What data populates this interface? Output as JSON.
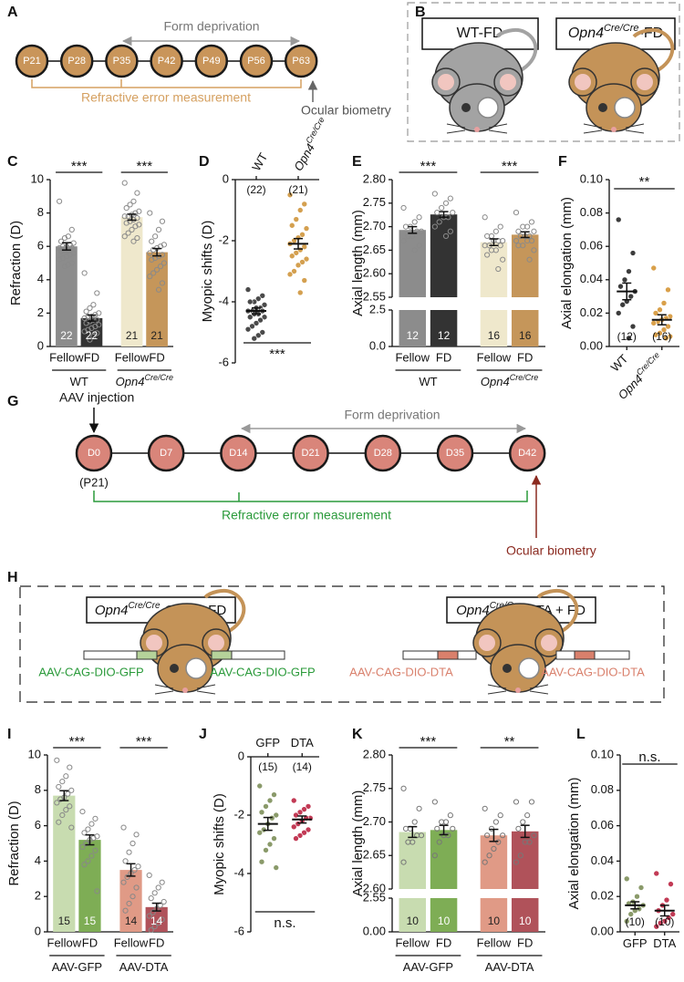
{
  "panel_letters": [
    "A",
    "B",
    "C",
    "D",
    "E",
    "F",
    "G",
    "H",
    "I",
    "J",
    "K",
    "L"
  ],
  "timeline_a": {
    "nodes": [
      "P21",
      "P28",
      "P35",
      "P42",
      "P49",
      "P56",
      "P63"
    ],
    "arrow_label": "Form deprivation",
    "bracket_label": "Refractive error measurement",
    "end_label": "Ocular biometry"
  },
  "mice_b": {
    "labels": [
      {
        "text": "WT-FD"
      },
      {
        "text": "Opn4",
        "sup": "Cre/Cre",
        "suffix": "-FD"
      }
    ]
  },
  "timeline_g": {
    "start_label": "AAV injection",
    "start_sub": "(P21)",
    "nodes": [
      "D0",
      "D7",
      "D14",
      "D21",
      "D28",
      "D35",
      "D42"
    ],
    "arrow_label": "Form deprivation",
    "bracket_label": "Refractive error measurement",
    "end_label": "Ocular biometry"
  },
  "mice_h": {
    "labels": [
      {
        "text": "Opn4",
        "sup": "Cre/Cre",
        "suffix": "-GFP + FD"
      },
      {
        "text": "Opn4",
        "sup": "Cre/Cre",
        "suffix": "-DTA + FD"
      }
    ],
    "syringes": [
      "AAV-CAG-DIO-GFP",
      "AAV-CAG-DIO-GFP",
      "AAV-CAG-DIO-DTA",
      "AAV-CAG-DIO-DTA"
    ]
  },
  "chart_data": [
    {
      "type": "bar",
      "ylabel": "Refraction (D)",
      "ylim": [
        0,
        10
      ],
      "yticks": [
        0,
        2,
        4,
        6,
        8,
        10
      ],
      "categories": [
        "Fellow",
        "FD",
        "Fellow",
        "FD"
      ],
      "values": [
        6.0,
        1.7,
        7.75,
        5.65
      ],
      "errors": [
        0.22,
        0.18,
        0.18,
        0.22
      ],
      "colors": [
        "#8c8c8c",
        "#333333",
        "#efe8cc",
        "#c5965a"
      ],
      "point_color": "#8a8a8a",
      "points": [
        [
          8.7,
          7.0,
          6.6,
          6.5,
          6.3,
          6.2,
          6.1,
          6.0,
          6.0,
          5.9,
          5.9,
          5.8,
          5.8,
          5.7,
          5.6,
          5.5,
          5.4,
          5.3,
          5.2,
          5.0,
          4.9,
          4.8
        ],
        [
          4.4,
          3.2,
          2.5,
          2.3,
          2.1,
          2.0,
          1.9,
          1.8,
          1.8,
          1.7,
          1.6,
          1.6,
          1.5,
          1.4,
          1.3,
          1.2,
          1.1,
          1.0,
          0.9,
          0.8,
          0.6,
          0.4
        ],
        [
          9.8,
          9.2,
          8.7,
          8.5,
          8.3,
          8.1,
          8.0,
          7.9,
          7.8,
          7.8,
          7.7,
          7.6,
          7.5,
          7.4,
          7.3,
          7.2,
          7.0,
          6.8,
          6.6,
          6.5,
          6.3
        ],
        [
          8.0,
          7.5,
          7.0,
          6.6,
          6.3,
          6.1,
          6.0,
          5.9,
          5.8,
          5.6,
          5.5,
          5.4,
          5.3,
          5.2,
          5.0,
          4.8,
          4.6,
          4.4,
          4.2,
          3.8,
          3.4
        ]
      ],
      "n_labels": [
        22,
        22,
        21,
        21
      ],
      "groups": [
        {
          "text": "WT"
        },
        {
          "text": "Opn4",
          "sup": "Cre/Cre"
        }
      ],
      "significance": [
        "***",
        "***"
      ]
    },
    {
      "type": "strip",
      "ylabel": "Myopic shifts (D)",
      "ylim": [
        -6,
        0
      ],
      "yticks": [
        0,
        -2,
        -4,
        -6
      ],
      "categories": [
        {
          "text": "WT"
        },
        {
          "text": "Opn4",
          "sup": "Cre/Cre"
        }
      ],
      "category_position": "top",
      "colors": [
        "#4a4a4a",
        "#d4a050"
      ],
      "points": [
        [
          -3.6,
          -3.8,
          -3.9,
          -4.0,
          -4.0,
          -4.1,
          -4.2,
          -4.2,
          -4.3,
          -4.3,
          -4.3,
          -4.4,
          -4.4,
          -4.5,
          -4.5,
          -4.6,
          -4.7,
          -4.8,
          -4.9,
          -5.0,
          -5.1,
          -5.2
        ],
        [
          -0.5,
          -0.8,
          -1.0,
          -1.3,
          -1.5,
          -1.6,
          -1.8,
          -1.9,
          -2.0,
          -2.1,
          -2.2,
          -2.3,
          -2.4,
          -2.5,
          -2.6,
          -2.7,
          -2.8,
          -3.0,
          -3.1,
          -3.3,
          -3.7
        ]
      ],
      "means": [
        -4.3,
        -2.1
      ],
      "errors": [
        0.1,
        0.17
      ],
      "n_labels": [
        "(22)",
        "(21)"
      ],
      "significance": [
        "***"
      ],
      "significance_position": "bottom"
    },
    {
      "type": "bar",
      "ylabel": "Axial length (mm)",
      "ylim_lower": [
        0,
        2.5
      ],
      "ylim_upper": [
        2.55,
        2.8
      ],
      "yticks": [
        {
          "value": 0,
          "label": "0.0"
        },
        2.5,
        2.55,
        {
          "value": 2.6,
          "label": "2.60"
        },
        2.65,
        {
          "value": 2.7,
          "label": "2.70"
        },
        2.75,
        {
          "value": 2.8,
          "label": "2.80"
        }
      ],
      "categories": [
        "Fellow",
        "FD",
        "Fellow",
        "FD"
      ],
      "values": [
        2.693,
        2.726,
        2.667,
        2.683
      ],
      "errors": [
        0.007,
        0.006,
        0.007,
        0.006
      ],
      "colors": [
        "#8c8c8c",
        "#333333",
        "#efe8cc",
        "#c5965a"
      ],
      "point_color": "#8a8a8a",
      "points": [
        [
          2.74,
          2.72,
          2.71,
          2.7,
          2.7,
          2.69,
          2.69,
          2.68,
          2.68,
          2.67,
          2.66,
          2.65
        ],
        [
          2.77,
          2.76,
          2.75,
          2.74,
          2.73,
          2.73,
          2.72,
          2.72,
          2.71,
          2.7,
          2.69,
          2.68
        ],
        [
          2.72,
          2.7,
          2.69,
          2.68,
          2.68,
          2.67,
          2.67,
          2.67,
          2.66,
          2.66,
          2.66,
          2.65,
          2.65,
          2.64,
          2.63,
          2.61
        ],
        [
          2.73,
          2.71,
          2.7,
          2.7,
          2.69,
          2.69,
          2.68,
          2.68,
          2.68,
          2.67,
          2.67,
          2.67,
          2.66,
          2.66,
          2.65,
          2.63
        ]
      ],
      "n_labels": [
        12,
        12,
        16,
        16
      ],
      "groups": [
        {
          "text": "WT"
        },
        {
          "text": "Opn4",
          "sup": "Cre/Cre"
        }
      ],
      "significance": [
        "***",
        "***"
      ]
    },
    {
      "type": "strip",
      "ylabel": "Axial elongation (mm)",
      "ylim": [
        0,
        0.1
      ],
      "yticks": [
        {
          "value": 0,
          "label": "0.00"
        },
        0.02,
        0.04,
        0.06,
        0.08,
        {
          "value": 0.1,
          "label": "0.10"
        }
      ],
      "categories": [
        {
          "text": "WT"
        },
        {
          "text": "Opn4",
          "sup": "Cre/Cre"
        }
      ],
      "category_position": "bottom",
      "colors": [
        "#3c3c3c",
        "#d9a04a"
      ],
      "points": [
        [
          0.076,
          0.056,
          0.045,
          0.04,
          0.036,
          0.033,
          0.03,
          0.027,
          0.025,
          0.02,
          0.012,
          0.005
        ],
        [
          0.047,
          0.034,
          0.026,
          0.022,
          0.02,
          0.018,
          0.017,
          0.016,
          0.015,
          0.014,
          0.012,
          0.01,
          0.008,
          0.007,
          0.006,
          0.005
        ]
      ],
      "means": [
        0.033,
        0.016
      ],
      "errors": [
        0.005,
        0.003
      ],
      "n_labels": [
        "(12)",
        "(16)"
      ],
      "significance": [
        "**"
      ],
      "significance_position": "top"
    },
    {
      "type": "bar",
      "ylabel": "Refraction (D)",
      "ylim": [
        0,
        10
      ],
      "yticks": [
        0,
        2,
        4,
        6,
        8,
        10
      ],
      "categories": [
        "Fellow",
        "FD",
        "Fellow",
        "FD"
      ],
      "values": [
        7.7,
        5.2,
        3.5,
        1.4
      ],
      "errors": [
        0.28,
        0.28,
        0.35,
        0.22
      ],
      "colors": [
        "#c8dcb0",
        "#7ead55",
        "#e09a86",
        "#b0525a"
      ],
      "point_color": "#888888",
      "points": [
        [
          9.7,
          9.3,
          8.8,
          8.5,
          8.2,
          8.0,
          7.8,
          7.6,
          7.5,
          7.3,
          7.1,
          6.9,
          6.6,
          6.2,
          5.9
        ],
        [
          6.8,
          6.4,
          6.1,
          5.8,
          5.6,
          5.4,
          5.3,
          5.2,
          5.0,
          4.8,
          4.6,
          4.3,
          4.0,
          3.8,
          2.3
        ],
        [
          5.9,
          5.5,
          5.0,
          4.5,
          4.0,
          3.7,
          3.5,
          3.3,
          3.1,
          2.8,
          2.5,
          2.0,
          1.6,
          1.2
        ],
        [
          3.2,
          2.8,
          2.5,
          2.2,
          1.9,
          1.7,
          1.5,
          1.3,
          1.1,
          0.9,
          0.7,
          0.5,
          0.3,
          0.1
        ]
      ],
      "n_labels": [
        15,
        15,
        14,
        14
      ],
      "groups": [
        {
          "text": "AAV-GFP"
        },
        {
          "text": "AAV-DTA"
        }
      ],
      "significance": [
        "***",
        "***"
      ]
    },
    {
      "type": "strip",
      "ylabel": "Myopic shifts (D)",
      "ylim": [
        -6,
        0
      ],
      "yticks": [
        0,
        -2,
        -4,
        -6
      ],
      "categories": [
        {
          "text": "GFP"
        },
        {
          "text": "DTA"
        }
      ],
      "category_position": "top",
      "colors": [
        "#8a9a6a",
        "#c23a55"
      ],
      "points": [
        [
          -1.0,
          -1.3,
          -1.5,
          -1.7,
          -1.9,
          -2.0,
          -2.1,
          -2.3,
          -2.5,
          -2.6,
          -2.8,
          -3.0,
          -3.2,
          -3.6,
          -3.8
        ],
        [
          -1.5,
          -1.7,
          -1.8,
          -1.9,
          -2.0,
          -2.1,
          -2.1,
          -2.2,
          -2.3,
          -2.4,
          -2.5,
          -2.6,
          -2.7,
          -2.8
        ]
      ],
      "means": [
        -2.3,
        -2.15
      ],
      "errors": [
        0.22,
        0.12
      ],
      "n_labels": [
        "(15)",
        "(14)"
      ],
      "significance": [
        "n.s."
      ],
      "significance_position": "bottom"
    },
    {
      "type": "bar",
      "ylabel": "Axial length (mm)",
      "ylim_lower": [
        0,
        2.55
      ],
      "ylim_upper": [
        2.6,
        2.8
      ],
      "yticks": [
        {
          "value": 0,
          "label": "0.00"
        },
        2.55,
        {
          "value": 2.6,
          "label": "2.60"
        },
        2.65,
        {
          "value": 2.7,
          "label": "2.70"
        },
        2.75,
        {
          "value": 2.8,
          "label": "2.80"
        }
      ],
      "categories": [
        "Fellow",
        "FD",
        "Fellow",
        "FD"
      ],
      "values": [
        2.685,
        2.688,
        2.68,
        2.686
      ],
      "errors": [
        0.008,
        0.007,
        0.009,
        0.009
      ],
      "colors": [
        "#c8dcb0",
        "#7ead55",
        "#e09a86",
        "#b0525a"
      ],
      "point_color": "#777777",
      "points": [
        [
          2.75,
          2.72,
          2.7,
          2.69,
          2.69,
          2.68,
          2.68,
          2.67,
          2.67,
          2.64
        ],
        [
          2.73,
          2.71,
          2.7,
          2.7,
          2.69,
          2.69,
          2.68,
          2.68,
          2.67,
          2.65
        ],
        [
          2.72,
          2.71,
          2.7,
          2.69,
          2.68,
          2.68,
          2.67,
          2.66,
          2.65,
          2.64
        ],
        [
          2.73,
          2.73,
          2.71,
          2.7,
          2.69,
          2.68,
          2.67,
          2.67,
          2.65,
          2.64
        ]
      ],
      "n_labels": [
        10,
        10,
        10,
        10
      ],
      "groups": [
        {
          "text": "AAV-GFP"
        },
        {
          "text": "AAV-DTA"
        }
      ],
      "significance": [
        "***",
        "**"
      ]
    },
    {
      "type": "strip",
      "ylabel": "Axial elongation (mm)",
      "ylim": [
        0,
        0.1
      ],
      "yticks": [
        {
          "value": 0,
          "label": "0.00"
        },
        0.02,
        0.04,
        0.06,
        0.08,
        {
          "value": 0.1,
          "label": "0.10"
        }
      ],
      "categories": [
        {
          "text": "GFP"
        },
        {
          "text": "DTA"
        }
      ],
      "category_position": "bottom",
      "colors": [
        "#8a9a6a",
        "#c23a55"
      ],
      "points": [
        [
          0.03,
          0.025,
          0.02,
          0.017,
          0.016,
          0.015,
          0.013,
          0.012,
          0.01,
          0.006
        ],
        [
          0.033,
          0.027,
          0.018,
          0.015,
          0.012,
          0.01,
          0.008,
          0.006,
          0.005,
          0.003
        ]
      ],
      "means": [
        0.015,
        0.012
      ],
      "errors": [
        0.002,
        0.003
      ],
      "n_labels": [
        "(10)",
        "(10)"
      ],
      "significance": [
        "n.s."
      ],
      "significance_position": "top"
    }
  ]
}
